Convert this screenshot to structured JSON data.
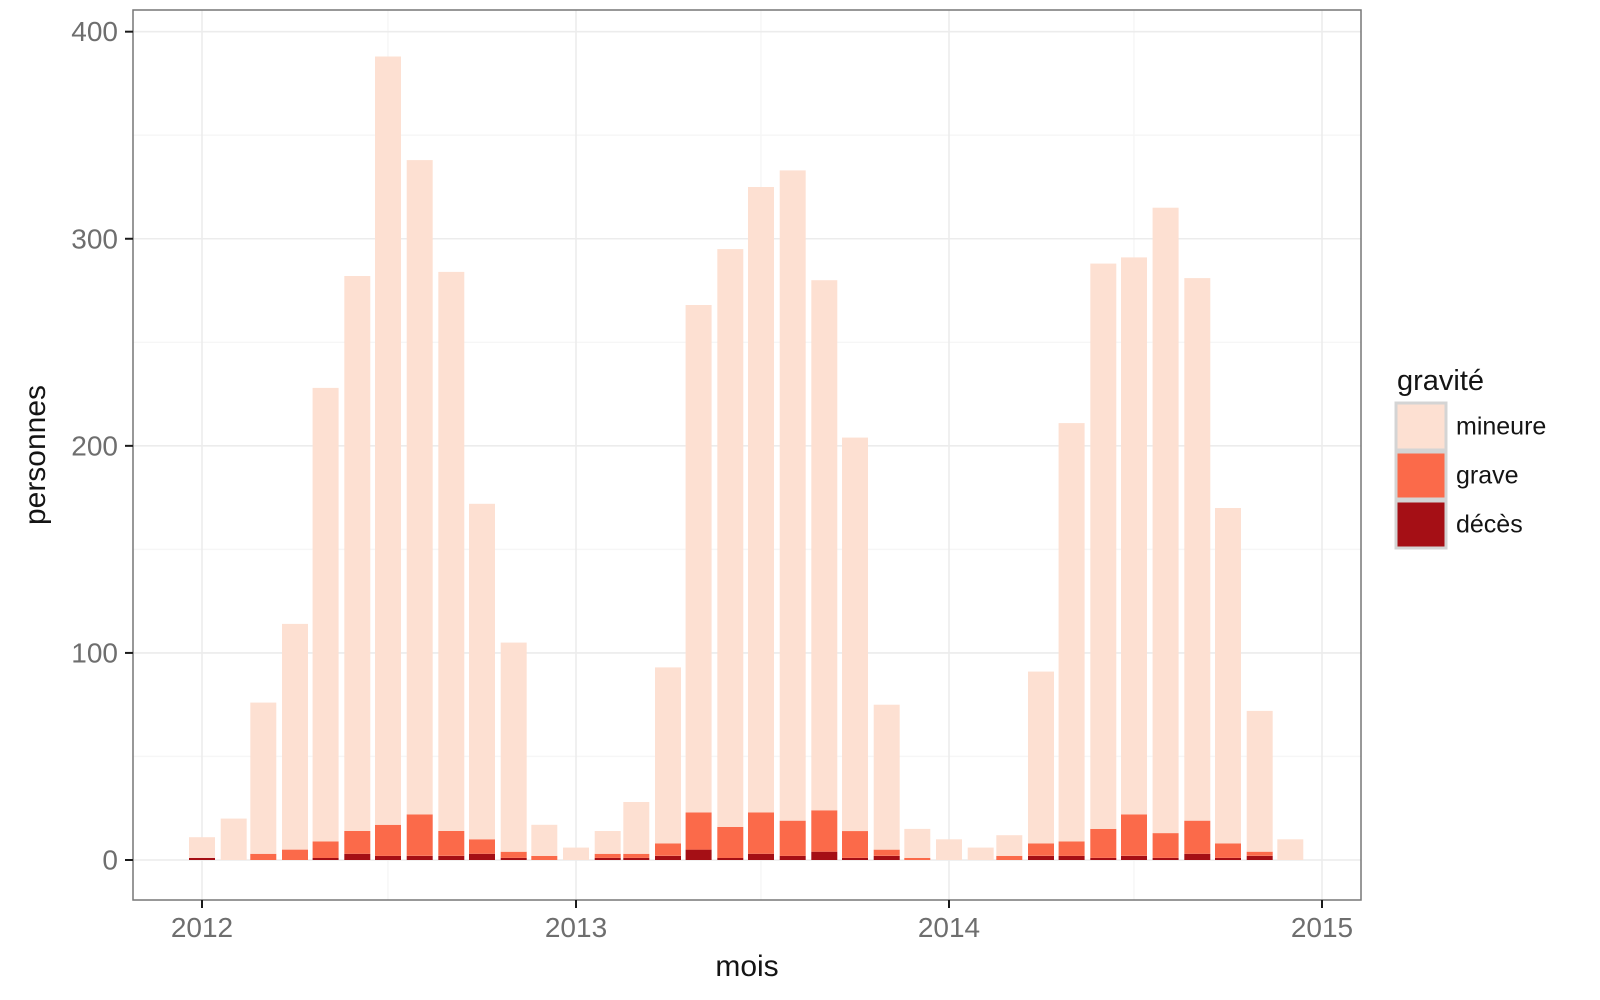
{
  "figure": {
    "background": "#ffffff",
    "panel_border_color": "#777777",
    "grid_major_color": "#ececec",
    "grid_minor_color": "#f6f6f6",
    "tick_mark_color": "#1a1a1a",
    "tick_label_color": "#6e6e6e",
    "axis_title_color": "#141414"
  },
  "axes": {
    "x_label": "mois",
    "y_label": "personnes",
    "x_tick_labels": [
      "2012",
      "2013",
      "2014",
      "2015"
    ],
    "y_tick_labels": [
      "0",
      "100",
      "200",
      "300",
      "400"
    ]
  },
  "legend": {
    "title": "gravité",
    "key_border_color": "#d4d4d4",
    "items": [
      {
        "label": "mineure",
        "color": "#fde0d2"
      },
      {
        "label": "grave",
        "color": "#fb6a4a"
      },
      {
        "label": "décès",
        "color": "#a50f15"
      }
    ]
  },
  "chart_data": {
    "type": "bar",
    "stacked": true,
    "title": "",
    "xlabel": "mois",
    "ylabel": "personnes",
    "x_axis_kind": "date-month",
    "x_range_years": [
      2012,
      2015
    ],
    "ylim": [
      0,
      400
    ],
    "y_major_ticks": [
      0,
      100,
      200,
      300,
      400
    ],
    "y_minor_ticks": [
      50,
      150,
      250,
      350
    ],
    "grid": true,
    "legend_position": "right",
    "categories": [
      "2012-01",
      "2012-02",
      "2012-03",
      "2012-04",
      "2012-05",
      "2012-06",
      "2012-07",
      "2012-08",
      "2012-09",
      "2012-10",
      "2012-11",
      "2012-12",
      "2013-01",
      "2013-02",
      "2013-03",
      "2013-04",
      "2013-05",
      "2013-06",
      "2013-07",
      "2013-08",
      "2013-09",
      "2013-10",
      "2013-11",
      "2013-12",
      "2014-01",
      "2014-02",
      "2014-03",
      "2014-04",
      "2014-05",
      "2014-06",
      "2014-07",
      "2014-08",
      "2014-09",
      "2014-10",
      "2014-11",
      "2014-12"
    ],
    "stack_order": [
      "décès",
      "grave",
      "mineure"
    ],
    "series": [
      {
        "name": "mineure",
        "color": "#fde0d2",
        "values": [
          10,
          20,
          73,
          109,
          219,
          268,
          371,
          316,
          270,
          162,
          101,
          15,
          6,
          11,
          25,
          85,
          245,
          279,
          302,
          314,
          256,
          190,
          70,
          14,
          10,
          6,
          10,
          83,
          202,
          273,
          269,
          302,
          262,
          162,
          68,
          10
        ]
      },
      {
        "name": "grave",
        "color": "#fb6a4a",
        "values": [
          0,
          0,
          3,
          5,
          8,
          11,
          15,
          20,
          12,
          7,
          3,
          2,
          0,
          2,
          2,
          6,
          18,
          15,
          20,
          17,
          20,
          13,
          3,
          1,
          0,
          0,
          2,
          6,
          7,
          14,
          20,
          12,
          16,
          7,
          2,
          0
        ]
      },
      {
        "name": "décès",
        "color": "#a50f15",
        "values": [
          1,
          0,
          0,
          0,
          1,
          3,
          2,
          2,
          2,
          3,
          1,
          0,
          0,
          1,
          1,
          2,
          5,
          1,
          3,
          2,
          4,
          1,
          2,
          0,
          0,
          0,
          0,
          2,
          2,
          1,
          2,
          1,
          3,
          1,
          2,
          0
        ]
      }
    ]
  }
}
